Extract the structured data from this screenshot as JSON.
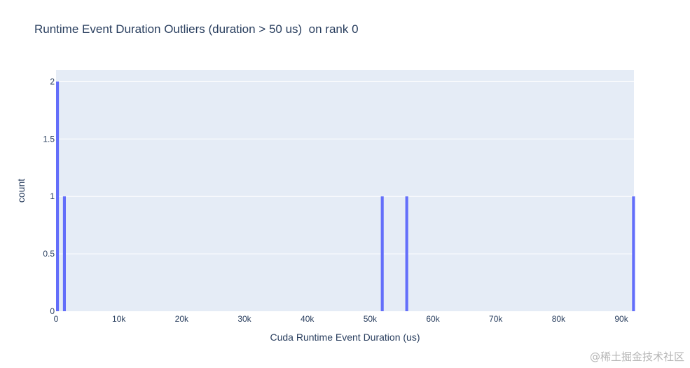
{
  "chart_data": {
    "type": "bar",
    "title": "Runtime Event Duration Outliers (duration > 50 us)  on rank 0",
    "xlabel": "Cuda Runtime Event Duration (us)",
    "ylabel": "count",
    "xlim": [
      0,
      92000
    ],
    "ylim": [
      0,
      2.1
    ],
    "x_ticks": [
      0,
      10000,
      20000,
      30000,
      40000,
      50000,
      60000,
      70000,
      80000,
      90000
    ],
    "x_tick_labels": [
      "0",
      "10k",
      "20k",
      "30k",
      "40k",
      "50k",
      "60k",
      "70k",
      "80k",
      "90k"
    ],
    "y_ticks": [
      0,
      0.5,
      1,
      1.5,
      2
    ],
    "y_tick_labels": [
      "0",
      "0.5",
      "1",
      "1.5",
      "2"
    ],
    "bin_width": 460,
    "bins": [
      {
        "x": 0,
        "count": 2
      },
      {
        "x": 1100,
        "count": 1
      },
      {
        "x": 51700,
        "count": 1
      },
      {
        "x": 55600,
        "count": 1
      },
      {
        "x": 91700,
        "count": 1
      }
    ],
    "grid": true,
    "bar_color": "#636efa",
    "plot_bgcolor": "#e5ecf6",
    "text_color": "#2a3f5f"
  },
  "watermark": "@稀土掘金技术社区"
}
